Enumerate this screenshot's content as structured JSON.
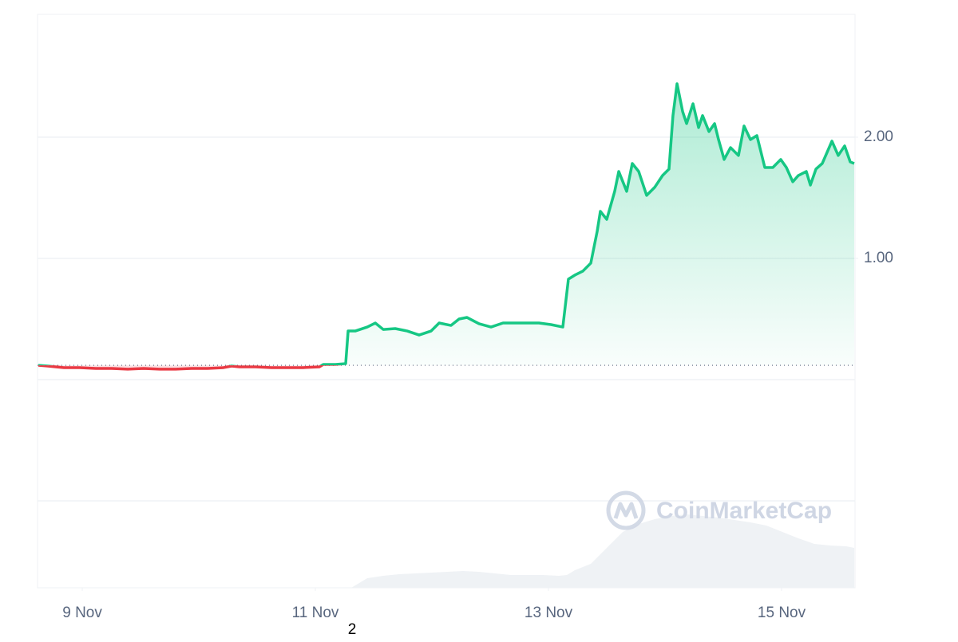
{
  "chart_data": {
    "type": "line",
    "x": [
      -0.377,
      -0.295,
      -0.158,
      -0.021,
      0.116,
      0.253,
      0.39,
      0.527,
      0.664,
      0.801,
      0.938,
      1.075,
      1.212,
      1.281,
      1.349,
      1.486,
      1.623,
      1.76,
      1.897,
      2.034,
      2.068,
      2.171,
      2.26,
      2.281,
      2.342,
      2.445,
      2.514,
      2.582,
      2.685,
      2.788,
      2.89,
      2.993,
      3.062,
      3.164,
      3.233,
      3.301,
      3.404,
      3.507,
      3.61,
      3.712,
      3.815,
      3.918,
      4.021,
      4.123,
      4.171,
      4.226,
      4.295,
      4.363,
      4.418,
      4.445,
      4.5,
      4.568,
      4.603,
      4.671,
      4.719,
      4.774,
      4.842,
      4.911,
      4.979,
      5.034,
      5.068,
      5.103,
      5.151,
      5.185,
      5.24,
      5.288,
      5.322,
      5.377,
      5.425,
      5.459,
      5.507,
      5.562,
      5.63,
      5.678,
      5.733,
      5.788,
      5.856,
      5.925,
      5.993,
      6.041,
      6.096,
      6.144,
      6.212,
      6.247,
      6.295,
      6.349,
      6.432,
      6.486,
      6.541,
      6.589,
      6.623
    ],
    "values": [
      0.118,
      0.112,
      0.099,
      0.099,
      0.092,
      0.092,
      0.086,
      0.092,
      0.086,
      0.086,
      0.092,
      0.092,
      0.099,
      0.112,
      0.105,
      0.105,
      0.099,
      0.099,
      0.099,
      0.105,
      0.125,
      0.125,
      0.132,
      0.401,
      0.401,
      0.434,
      0.467,
      0.414,
      0.421,
      0.401,
      0.368,
      0.401,
      0.467,
      0.447,
      0.5,
      0.513,
      0.461,
      0.434,
      0.467,
      0.467,
      0.467,
      0.467,
      0.454,
      0.434,
      0.829,
      0.862,
      0.895,
      0.961,
      1.224,
      1.388,
      1.322,
      1.553,
      1.717,
      1.553,
      1.783,
      1.717,
      1.52,
      1.586,
      1.684,
      1.737,
      2.178,
      2.441,
      2.211,
      2.112,
      2.276,
      2.079,
      2.178,
      2.046,
      2.112,
      1.98,
      1.816,
      1.914,
      1.849,
      2.092,
      1.98,
      2.013,
      1.75,
      1.75,
      1.816,
      1.75,
      1.632,
      1.684,
      1.717,
      1.605,
      1.737,
      1.783,
      1.967,
      1.849,
      1.928,
      1.796,
      1.783
    ],
    "baseline": 0.118,
    "up_color": "#16c784",
    "down_color": "#ea3943",
    "volume": {
      "x": [
        -0.377,
        2.308,
        2.445,
        2.582,
        2.719,
        2.856,
        2.993,
        3.13,
        3.267,
        3.404,
        3.541,
        3.678,
        3.815,
        3.952,
        4.089,
        4.158,
        4.226,
        4.363,
        4.5,
        4.637,
        4.774,
        4.911,
        5.048,
        5.185,
        5.322,
        5.459,
        5.596,
        5.733,
        5.87,
        6.007,
        6.144,
        6.281,
        6.418,
        6.555,
        6.623
      ],
      "values": [
        0,
        0,
        12,
        15,
        17,
        18,
        19,
        20,
        21,
        20,
        18,
        16,
        16,
        16,
        15,
        16,
        22,
        30,
        50,
        70,
        80,
        86,
        90,
        92,
        90,
        88,
        85,
        82,
        78,
        70,
        62,
        55,
        53,
        52,
        50
      ],
      "color": "#eff2f5"
    },
    "xlim": [
      -0.384,
      6.63
    ],
    "ylim": [
      -1.717,
      3.013
    ],
    "xticks": [
      {
        "value": 0,
        "label": "9 Nov"
      },
      {
        "value": 2,
        "label": "11 Nov"
      },
      {
        "value": 4,
        "label": "13 Nov"
      },
      {
        "value": 6,
        "label": "15 Nov"
      }
    ],
    "yticks": [
      {
        "value": 1,
        "label": "1.00"
      },
      {
        "value": 2,
        "label": "2.00"
      }
    ],
    "gridlines": [
      -1,
      0,
      1,
      2
    ],
    "watermark": "CoinMarketCap",
    "annotation": "2"
  }
}
